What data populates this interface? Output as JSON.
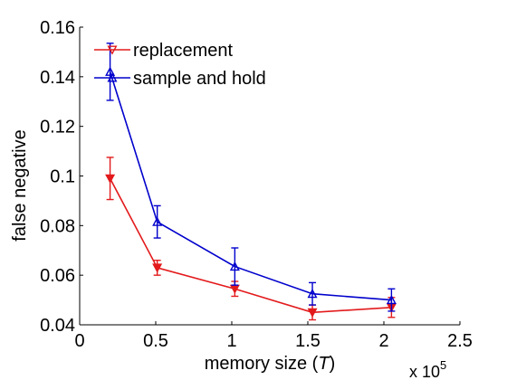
{
  "chart_data": {
    "type": "line",
    "xlabel": "memory size (",
    "xlabel_var": "T",
    "xlabel_close": ")",
    "ylabel": "false negative",
    "x_multiplier": "x 10",
    "x_multiplier_exp": "5",
    "xlim": [
      0,
      2.5
    ],
    "ylim": [
      0.04,
      0.16
    ],
    "xticks": [
      0,
      0.5,
      1,
      1.5,
      2,
      2.5
    ],
    "xtick_labels": [
      "0",
      "0.5",
      "1",
      "1.5",
      "2",
      "2.5"
    ],
    "yticks": [
      0.04,
      0.06,
      0.08,
      0.1,
      0.12,
      0.14,
      0.16
    ],
    "ytick_labels": [
      "0.04",
      "0.06",
      "0.08",
      "0.1",
      "0.12",
      "0.14",
      "0.16"
    ],
    "grid": false,
    "legend_position": "top-left",
    "series": [
      {
        "name": "replacement",
        "color": "#e31a1c",
        "marker": "triangle-down",
        "x": [
          0.2,
          0.51,
          1.02,
          1.53,
          2.05
        ],
        "y": [
          0.099,
          0.063,
          0.0545,
          0.045,
          0.047
        ],
        "err_low": [
          0.0085,
          0.003,
          0.003,
          0.003,
          0.004
        ],
        "err_high": [
          0.0085,
          0.003,
          0.003,
          0.003,
          0.004
        ]
      },
      {
        "name": "sample and hold",
        "color": "#0000cc",
        "marker": "triangle-up",
        "x": [
          0.2,
          0.51,
          1.02,
          1.53,
          2.05
        ],
        "y": [
          0.142,
          0.0815,
          0.0635,
          0.0525,
          0.05
        ],
        "err_low": [
          0.0115,
          0.0065,
          0.0075,
          0.0045,
          0.0045
        ],
        "err_high": [
          0.0115,
          0.0065,
          0.0075,
          0.0045,
          0.0045
        ]
      }
    ]
  }
}
